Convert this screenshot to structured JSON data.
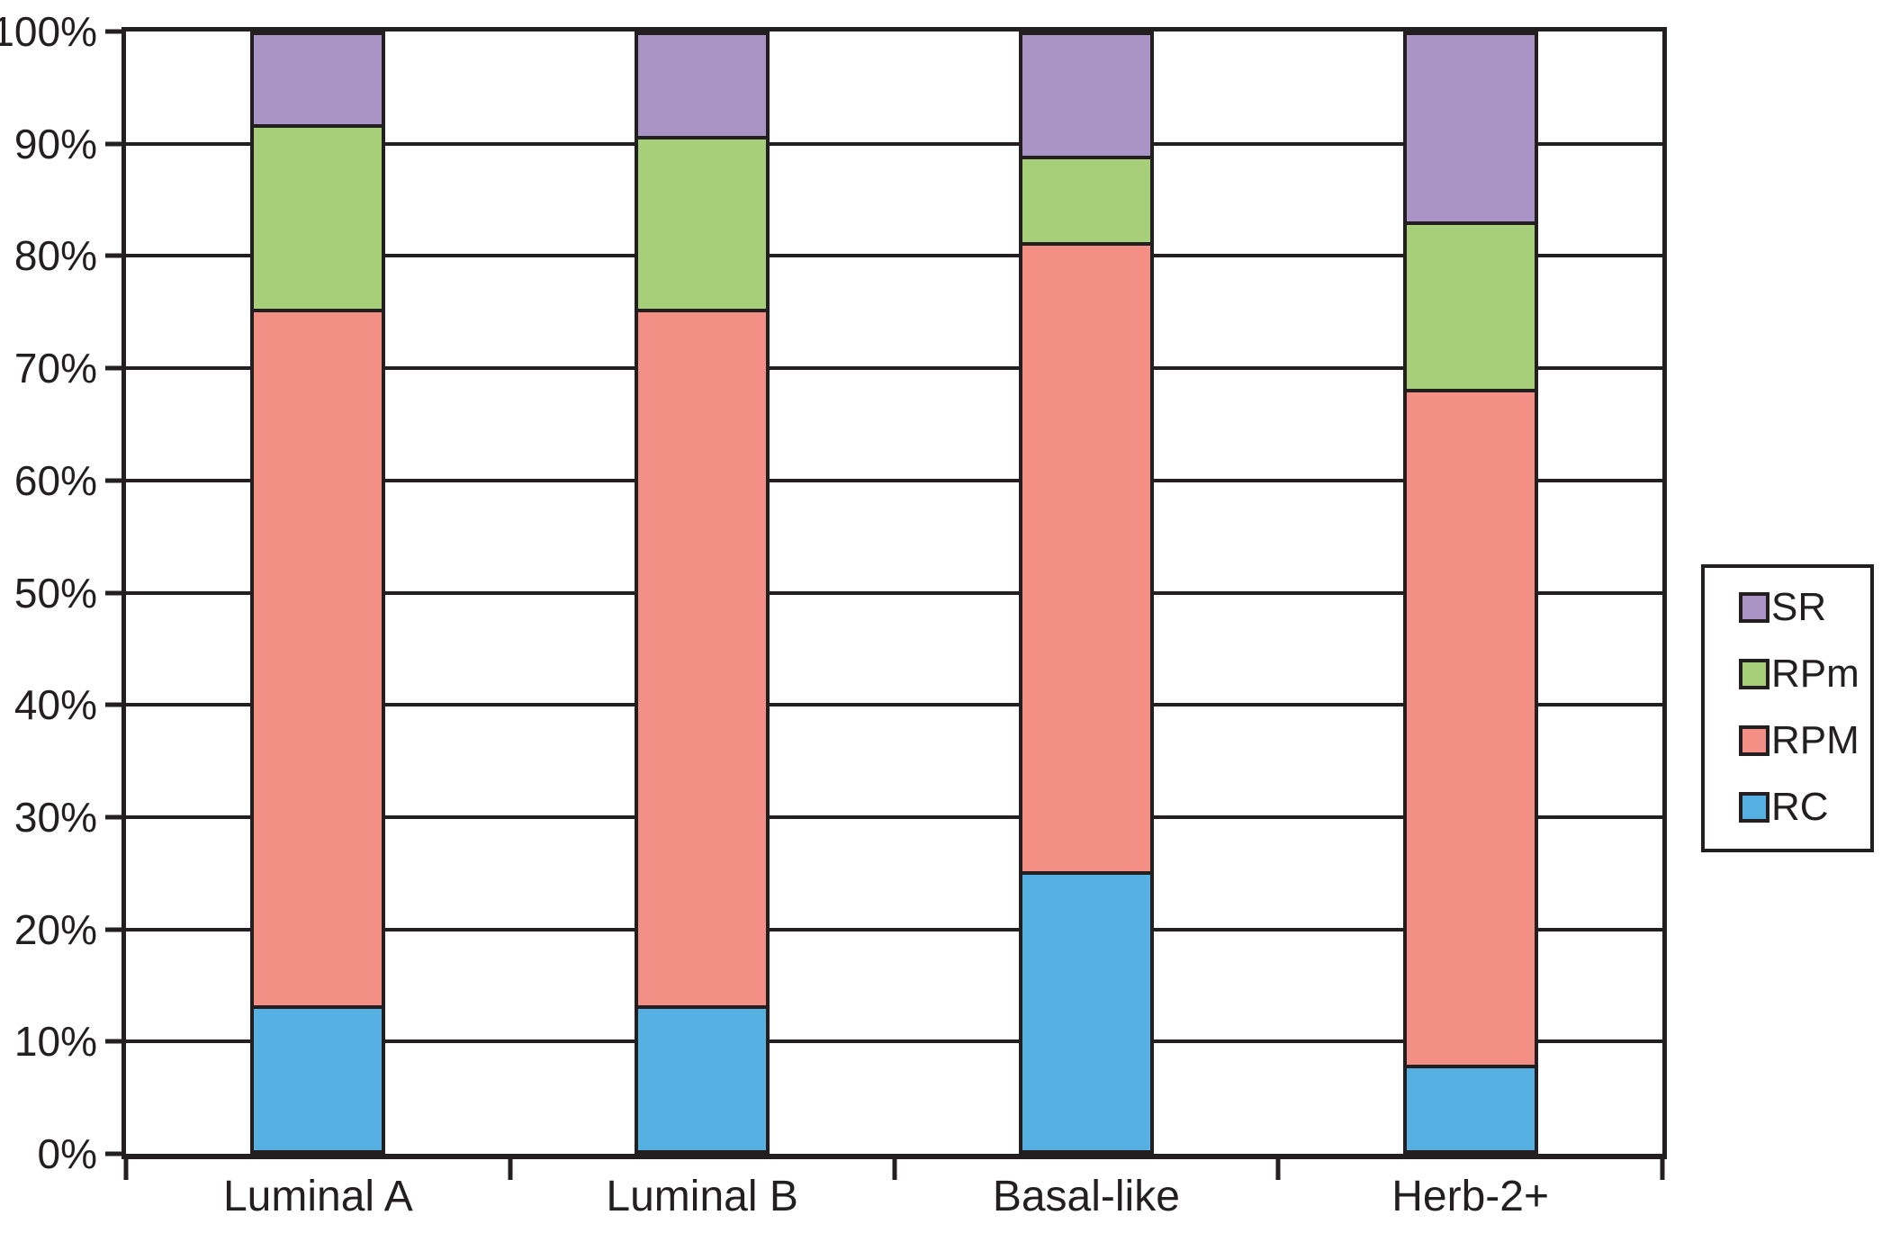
{
  "chart_data": {
    "type": "bar",
    "stacked": true,
    "percent_stack": true,
    "title": "",
    "xlabel": "",
    "ylabel": "",
    "categories": [
      "Luminal A",
      "Luminal B",
      "Basal-like",
      "Herb-2+"
    ],
    "series": [
      {
        "name": "RC",
        "color": "#56b1e2",
        "values": [
          13.0,
          13.0,
          25.0,
          7.7
        ]
      },
      {
        "name": "RPM",
        "color": "#f38f84",
        "values": [
          62.5,
          62.5,
          56.4,
          60.6
        ]
      },
      {
        "name": "RPm",
        "color": "#a7ce78",
        "values": [
          16.5,
          15.5,
          7.8,
          15.0
        ]
      },
      {
        "name": "SR",
        "color": "#aa94c6",
        "values": [
          8.0,
          9.0,
          10.8,
          16.7
        ]
      }
    ],
    "stack_order_bottom_to_top": [
      "RC",
      "RPM",
      "RPm",
      "SR"
    ],
    "y_axis": {
      "min": 0,
      "max": 100,
      "step": 10,
      "tick_labels": [
        "0%",
        "10%",
        "20%",
        "30%",
        "40%",
        "50%",
        "60%",
        "70%",
        "80%",
        "90%",
        "100%"
      ]
    },
    "legend": {
      "position": "right",
      "entries_top_to_bottom": [
        "SR",
        "RPm",
        "RPM",
        "RC"
      ]
    },
    "grid": "horizontal",
    "line_color": "#231f20",
    "background_color": "#ffffff"
  }
}
